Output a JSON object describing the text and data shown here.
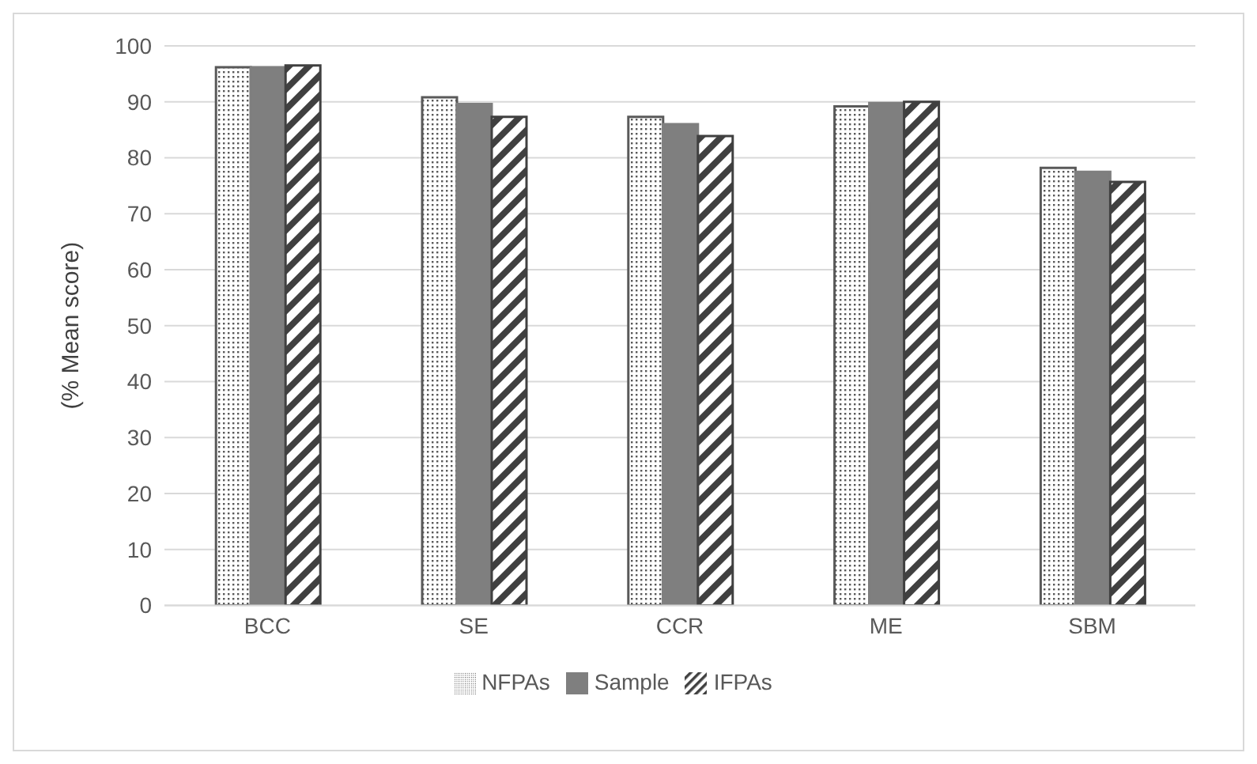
{
  "chart_data": {
    "type": "bar",
    "ylabel": "(% Mean score)",
    "categories": [
      "BCC",
      "SE",
      "CCR",
      "ME",
      "SBM"
    ],
    "series": [
      {
        "name": "NFPAs",
        "color": "#595959",
        "values": [
          96.2,
          90.8,
          87.3,
          89.2,
          78.2
        ]
      },
      {
        "name": "Sample",
        "color": "#7f7f7f",
        "values": [
          96.2,
          89.6,
          86.0,
          89.8,
          77.5
        ]
      },
      {
        "name": "IFPAs",
        "color": "#404040",
        "values": [
          96.5,
          87.3,
          83.9,
          90.0,
          75.7
        ]
      }
    ],
    "ylim": [
      0,
      100
    ],
    "yticks": [
      0,
      10,
      20,
      30,
      40,
      50,
      60,
      70,
      80,
      90,
      100
    ],
    "grid": "y",
    "legend": "bottom"
  }
}
